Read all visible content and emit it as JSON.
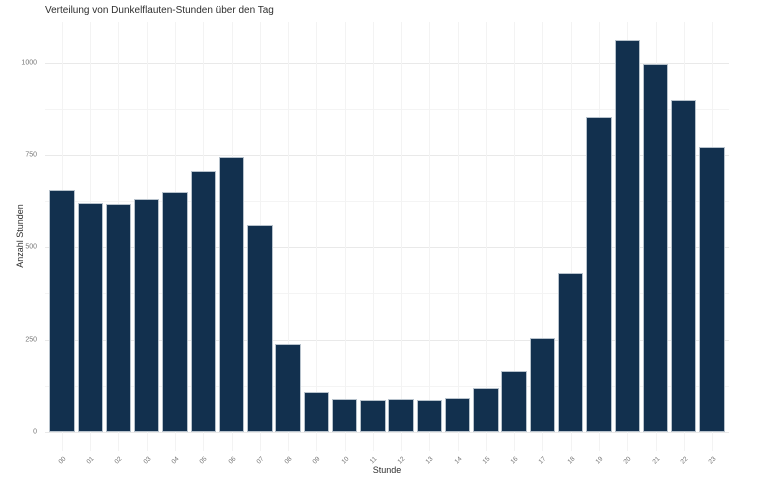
{
  "chart_data": {
    "type": "bar",
    "title": "Verteilung von Dunkelflauten-Stunden über den Tag",
    "xlabel": "Stunde",
    "ylabel": "Anzahl Stunden",
    "categories": [
      "00",
      "01",
      "02",
      "03",
      "04",
      "05",
      "06",
      "07",
      "08",
      "09",
      "10",
      "11",
      "12",
      "13",
      "14",
      "15",
      "16",
      "17",
      "18",
      "19",
      "20",
      "21",
      "22",
      "23"
    ],
    "values": [
      655,
      620,
      617,
      630,
      650,
      706,
      745,
      560,
      238,
      109,
      89,
      87,
      89,
      87,
      93,
      118,
      166,
      255,
      430,
      854,
      1060,
      995,
      899,
      772
    ],
    "ylim": [
      0,
      1110
    ],
    "yticks": [
      0,
      250,
      500,
      750,
      1000
    ],
    "yticks_minor": [
      125,
      375,
      625,
      875
    ],
    "grid": "major+minor, horizontal and vertical, light gray on white",
    "legend_position": "none",
    "bar_color": "#12304e",
    "bar_border_color": "#b7c2cc",
    "grid_color_major": "#e9e9e9",
    "grid_color_minor": "#f4f4f4",
    "tick_label_color": "#757575",
    "title_color": "#2e2e2e"
  }
}
